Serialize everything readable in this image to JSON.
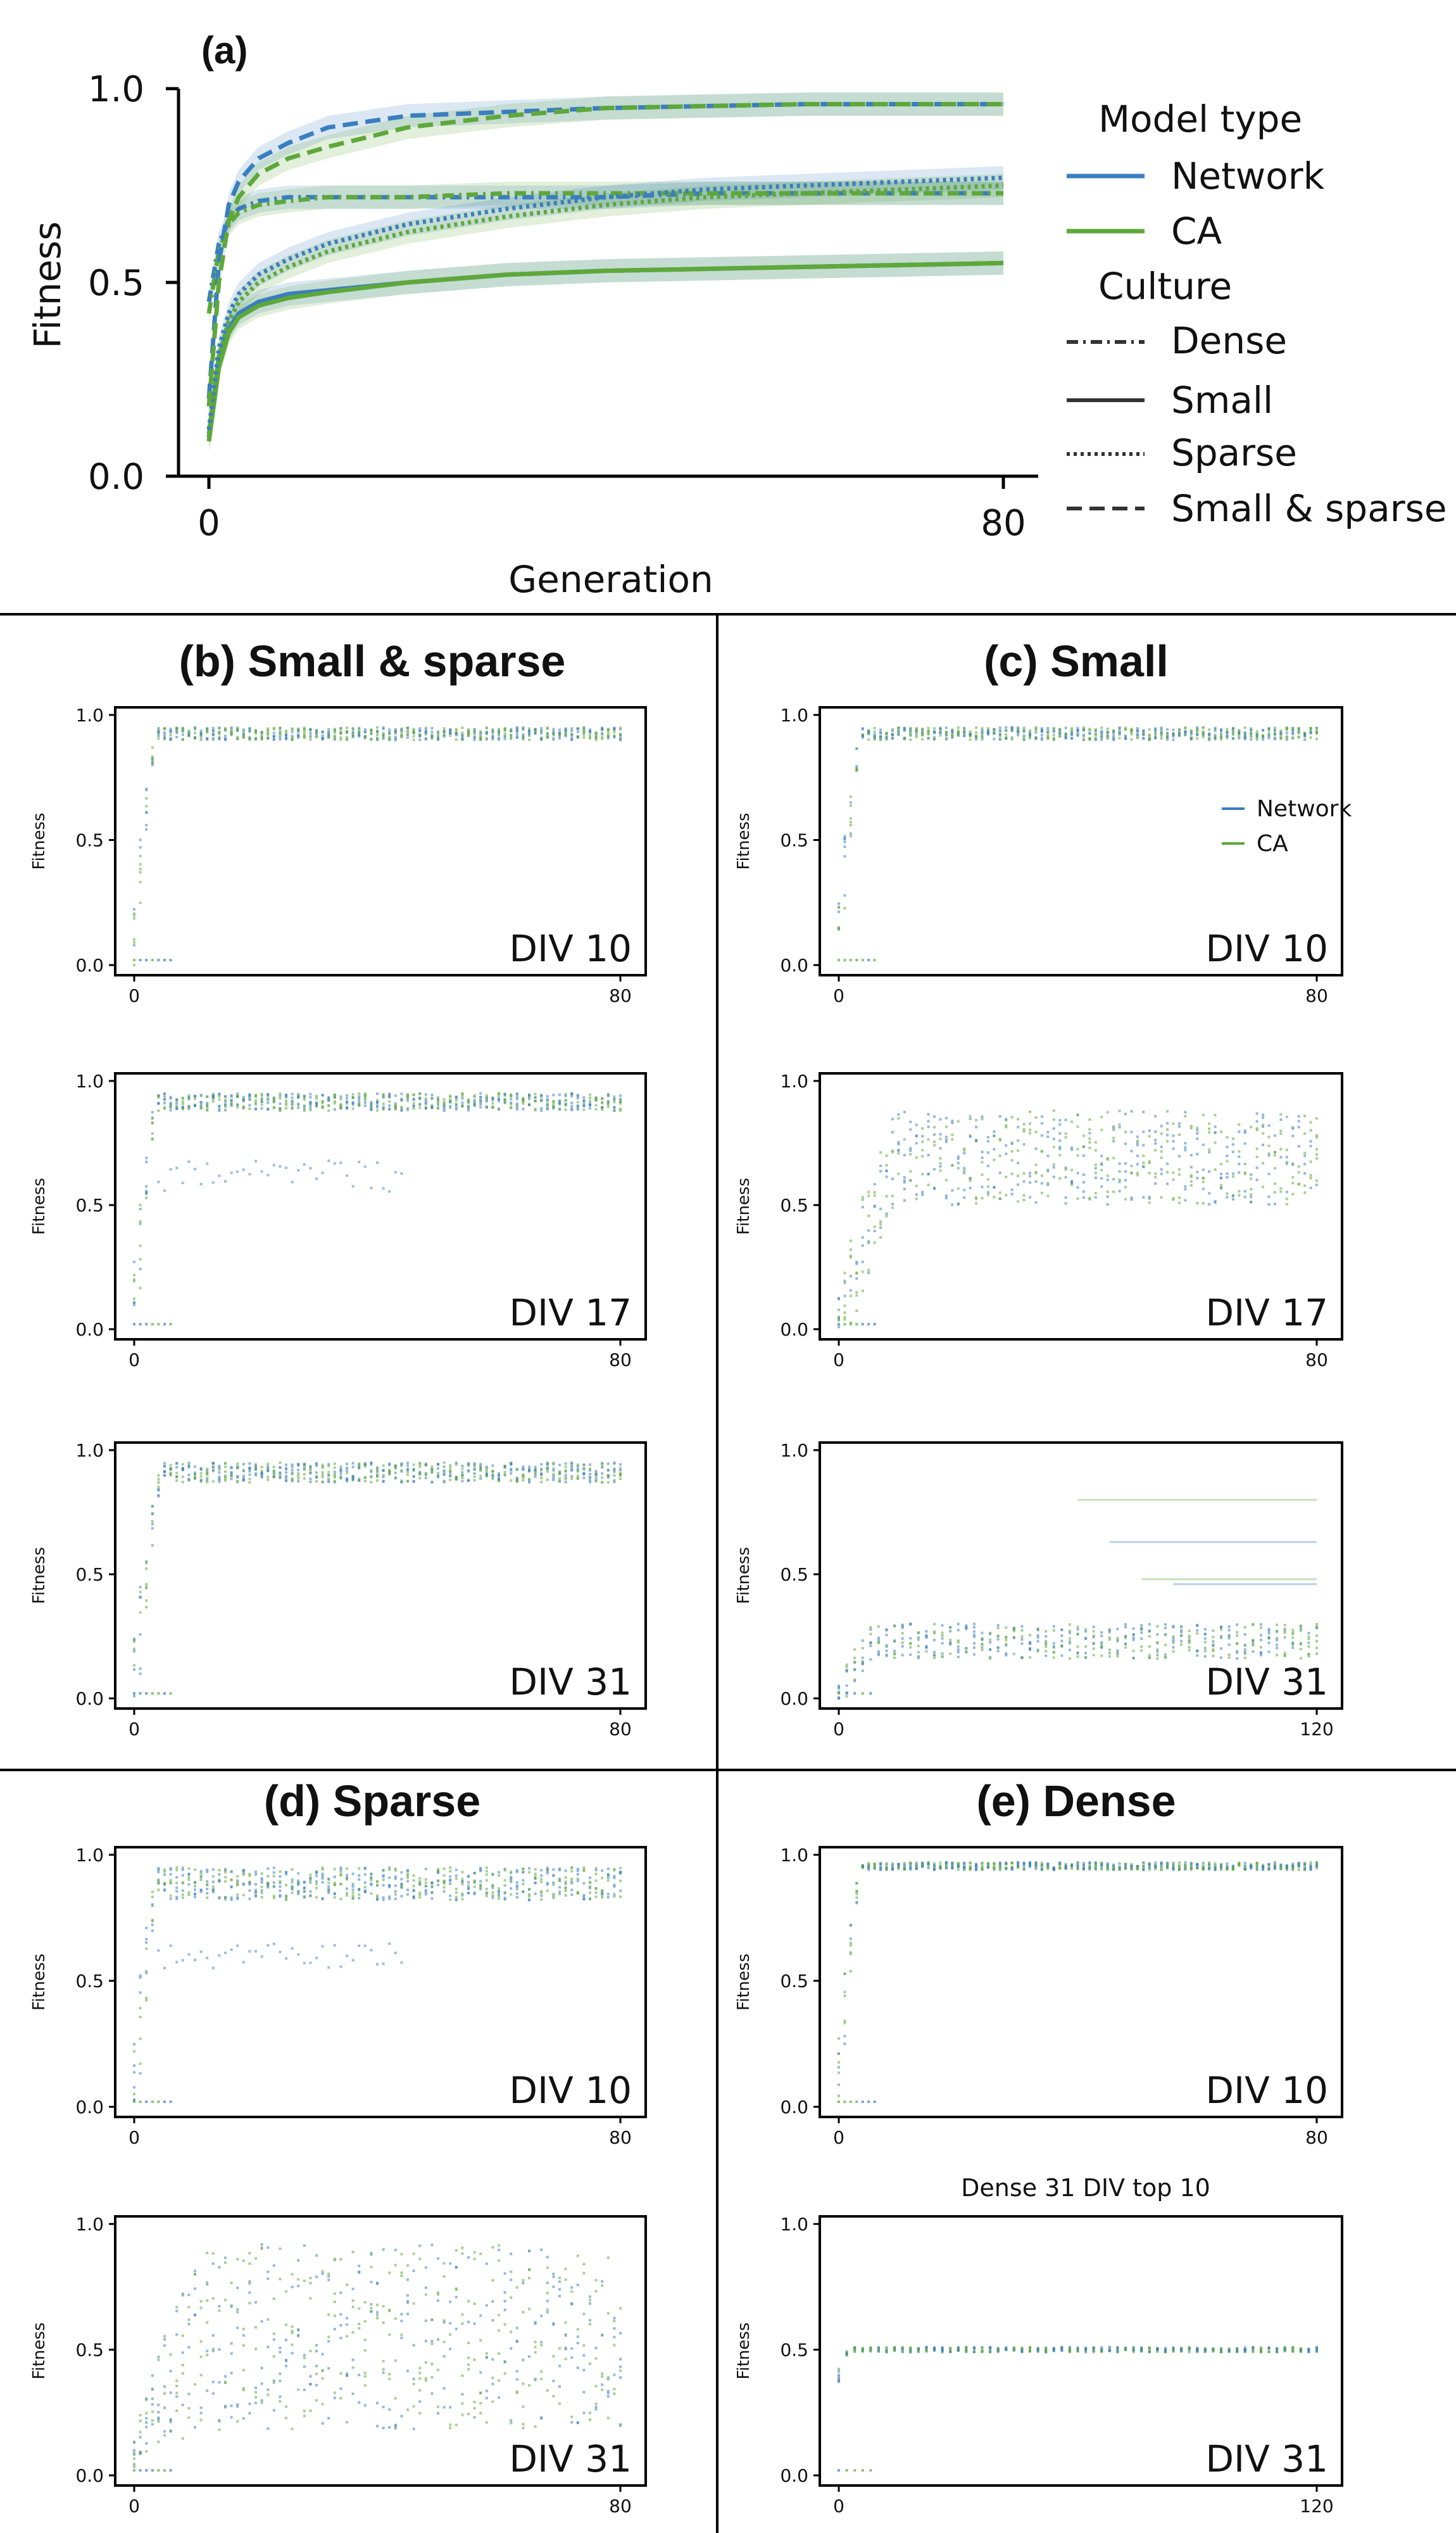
{
  "colors": {
    "network": "#3a7ebf",
    "ca": "#5ea83a",
    "axis": "#000000",
    "divider": "#000000"
  },
  "legend": {
    "model_type_title": "Model type",
    "model_types": [
      "Network",
      "CA"
    ],
    "culture_title": "Culture",
    "cultures": [
      "Dense",
      "Small",
      "Sparse",
      "Small & sparse"
    ]
  },
  "chart_data": [
    {
      "id": "a",
      "type": "line",
      "panel_label": "(a)",
      "xlabel": "Generation",
      "ylabel": "Fitness",
      "xlim": [
        0,
        80
      ],
      "ylim": [
        0,
        1
      ],
      "xticks": [
        "0",
        "80"
      ],
      "yticks": [
        "0.0",
        "0.5",
        "1.0"
      ],
      "series": [
        {
          "name": "Network / Dense",
          "model": "network",
          "culture": "dense",
          "x": [
            0,
            1,
            2,
            3,
            5,
            8,
            12,
            20,
            30,
            40,
            50,
            60,
            70,
            80
          ],
          "values": [
            0.45,
            0.6,
            0.66,
            0.69,
            0.71,
            0.72,
            0.72,
            0.72,
            0.72,
            0.72,
            0.73,
            0.73,
            0.73,
            0.73
          ]
        },
        {
          "name": "CA / Dense",
          "model": "ca",
          "culture": "dense",
          "x": [
            0,
            1,
            2,
            3,
            5,
            8,
            12,
            20,
            30,
            40,
            50,
            60,
            70,
            80
          ],
          "values": [
            0.42,
            0.58,
            0.65,
            0.68,
            0.7,
            0.71,
            0.72,
            0.72,
            0.73,
            0.73,
            0.73,
            0.73,
            0.73,
            0.73
          ]
        },
        {
          "name": "Network / Small",
          "model": "network",
          "culture": "small",
          "x": [
            0,
            1,
            2,
            3,
            5,
            8,
            12,
            20,
            30,
            40,
            50,
            60,
            70,
            80
          ],
          "values": [
            0.1,
            0.3,
            0.38,
            0.42,
            0.45,
            0.47,
            0.48,
            0.5,
            0.52,
            0.53,
            0.535,
            0.54,
            0.545,
            0.55
          ]
        },
        {
          "name": "CA / Small",
          "model": "ca",
          "culture": "small",
          "x": [
            0,
            1,
            2,
            3,
            5,
            8,
            12,
            20,
            30,
            40,
            50,
            60,
            70,
            80
          ],
          "values": [
            0.09,
            0.28,
            0.37,
            0.41,
            0.44,
            0.46,
            0.475,
            0.5,
            0.52,
            0.53,
            0.535,
            0.54,
            0.545,
            0.55
          ]
        },
        {
          "name": "Network / Sparse",
          "model": "network",
          "culture": "sparse",
          "x": [
            0,
            1,
            2,
            3,
            5,
            8,
            12,
            20,
            30,
            40,
            50,
            60,
            70,
            80
          ],
          "values": [
            0.12,
            0.33,
            0.42,
            0.47,
            0.52,
            0.56,
            0.6,
            0.65,
            0.69,
            0.72,
            0.74,
            0.75,
            0.76,
            0.77
          ]
        },
        {
          "name": "CA / Sparse",
          "model": "ca",
          "culture": "sparse",
          "x": [
            0,
            1,
            2,
            3,
            5,
            8,
            12,
            20,
            30,
            40,
            50,
            60,
            70,
            80
          ],
          "values": [
            0.11,
            0.31,
            0.4,
            0.45,
            0.5,
            0.54,
            0.58,
            0.63,
            0.67,
            0.7,
            0.72,
            0.73,
            0.74,
            0.75
          ]
        },
        {
          "name": "Network / Small & sparse",
          "model": "network",
          "culture": "smallsparse",
          "x": [
            0,
            1,
            2,
            3,
            5,
            8,
            12,
            20,
            30,
            40,
            50,
            60,
            70,
            80
          ],
          "values": [
            0.2,
            0.55,
            0.7,
            0.76,
            0.82,
            0.86,
            0.9,
            0.93,
            0.94,
            0.95,
            0.955,
            0.96,
            0.96,
            0.96
          ]
        },
        {
          "name": "CA / Small & sparse",
          "model": "ca",
          "culture": "smallsparse",
          "x": [
            0,
            1,
            2,
            3,
            5,
            8,
            12,
            20,
            30,
            40,
            50,
            60,
            70,
            80
          ],
          "values": [
            0.18,
            0.5,
            0.66,
            0.72,
            0.78,
            0.82,
            0.85,
            0.9,
            0.93,
            0.95,
            0.955,
            0.96,
            0.96,
            0.96
          ]
        }
      ]
    },
    {
      "id": "b1",
      "type": "scatter",
      "panel_title": "(b) Small & sparse",
      "div_label": "DIV 10",
      "xlim": [
        0,
        80
      ],
      "ylim": [
        0,
        1
      ],
      "xticks": [
        "0",
        "80"
      ],
      "yticks": [
        "0.0",
        "0.5",
        "1.0"
      ],
      "ylabel": "Fitness",
      "top": 0.95,
      "bottom": 0.9,
      "spread": 0.6,
      "rise": 1.0,
      "lowFloor": 0.0
    },
    {
      "id": "b2",
      "type": "scatter",
      "div_label": "DIV 17",
      "xlim": [
        0,
        80
      ],
      "ylim": [
        0,
        1
      ],
      "xticks": [
        "0",
        "80"
      ],
      "yticks": [
        "0.0",
        "0.5",
        "1.0"
      ],
      "ylabel": "Fitness",
      "top": 0.95,
      "bottom": 0.88,
      "spread": 0.75,
      "rise": 1.0,
      "lowFloor": 0.0,
      "extraBand": [
        0.55,
        0.68,
        45
      ]
    },
    {
      "id": "b3",
      "type": "scatter",
      "div_label": "DIV 31",
      "xlim": [
        0,
        80
      ],
      "ylim": [
        0,
        1
      ],
      "xticks": [
        "0",
        "80"
      ],
      "yticks": [
        "0.0",
        "0.5",
        "1.0"
      ],
      "ylabel": "Fitness",
      "top": 0.95,
      "bottom": 0.87,
      "spread": 0.7,
      "rise": 1.2,
      "lowFloor": 0.0
    },
    {
      "id": "c1",
      "type": "scatter",
      "panel_title": "(c) Small",
      "div_label": "DIV 10",
      "xlim": [
        0,
        80
      ],
      "ylim": [
        0,
        1
      ],
      "xticks": [
        "0",
        "80"
      ],
      "yticks": [
        "0.0",
        "0.5",
        "1.0"
      ],
      "ylabel": "Fitness",
      "top": 0.95,
      "bottom": 0.9,
      "spread": 0.7,
      "rise": 1.0,
      "lowFloor": 0.0,
      "legend": [
        "Network",
        "CA"
      ]
    },
    {
      "id": "c2",
      "type": "scatter",
      "div_label": "DIV 17",
      "xlim": [
        0,
        80
      ],
      "ylim": [
        0,
        1
      ],
      "xticks": [
        "0",
        "80"
      ],
      "yticks": [
        "0.0",
        "0.5",
        "1.0"
      ],
      "ylabel": "Fitness",
      "top": 0.88,
      "bottom": 0.5,
      "spread": 0.6,
      "rise": 2.5,
      "lowFloor": 0.0
    },
    {
      "id": "c3",
      "type": "scatter",
      "div_label": "DIV 31",
      "xlim": [
        0,
        120
      ],
      "ylim": [
        0,
        1
      ],
      "xticks": [
        "0",
        "120"
      ],
      "yticks": [
        "0.0",
        "0.5",
        "1.0"
      ],
      "ylabel": "Fitness",
      "top": 0.3,
      "bottom": 0.16,
      "spread": 0.15,
      "rise": 1.5,
      "lowFloor": 0.0,
      "outliers": [
        0.8,
        0.63,
        0.48,
        0.46
      ]
    },
    {
      "id": "d1",
      "type": "scatter",
      "panel_title": "(d) Sparse",
      "div_label": "DIV 10",
      "xlim": [
        0,
        80
      ],
      "ylim": [
        0,
        1
      ],
      "xticks": [
        "0",
        "80"
      ],
      "yticks": [
        "0.0",
        "0.5",
        "1.0"
      ],
      "ylabel": "Fitness",
      "top": 0.95,
      "bottom": 0.82,
      "spread": 0.8,
      "rise": 1.0,
      "lowFloor": 0.0,
      "extraBand": [
        0.55,
        0.65,
        45
      ]
    },
    {
      "id": "d2",
      "type": "scatter",
      "div_label": "DIV 31",
      "xlim": [
        0,
        80
      ],
      "ylim": [
        0,
        1
      ],
      "xticks": [
        "0",
        "80"
      ],
      "yticks": [
        "0.0",
        "0.5",
        "1.0"
      ],
      "ylabel": "Fitness",
      "top": 0.92,
      "bottom": 0.18,
      "spread": 0.0,
      "rise": 3.0,
      "lowFloor": 0.0
    },
    {
      "id": "e1",
      "type": "scatter",
      "panel_title": "(e) Dense",
      "div_label": "DIV 10",
      "xlim": [
        0,
        80
      ],
      "ylim": [
        0,
        1
      ],
      "xticks": [
        "0",
        "80"
      ],
      "yticks": [
        "0.0",
        "0.5",
        "1.0"
      ],
      "ylabel": "Fitness",
      "top": 0.97,
      "bottom": 0.94,
      "spread": 0.8,
      "rise": 1.0,
      "lowFloor": 0.0
    },
    {
      "id": "e2",
      "type": "scatter",
      "subtitle": "Dense 31 DIV  top 10",
      "div_label": "DIV 31",
      "xlim": [
        0,
        120
      ],
      "ylim": [
        0,
        1
      ],
      "xticks": [
        "0",
        "120"
      ],
      "yticks": [
        "0.0",
        "0.5",
        "1.0"
      ],
      "ylabel": "Fitness",
      "top": 0.51,
      "bottom": 0.49,
      "spread": 0.1,
      "rise": 0.5,
      "lowFloor": 0.4
    }
  ]
}
